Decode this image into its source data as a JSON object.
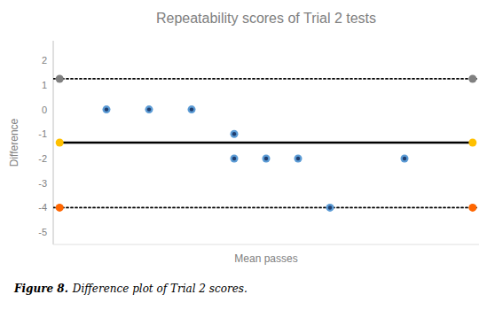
{
  "chart_data": {
    "type": "scatter",
    "title": "Repeatability scores of Trial 2 tests",
    "x_label": "Mean passes",
    "y_label": "Difference",
    "caption_label": "Figure 8.",
    "caption": "Difference plot of Trial 2 scores.",
    "xlim": [
      0.0,
      20.0
    ],
    "ylim": [
      -5.5,
      2.8
    ],
    "yticks": [
      -5,
      -4,
      -3,
      -2,
      -1,
      0,
      1,
      2
    ],
    "tick_labels": "y",
    "series": [
      {
        "type": "line",
        "line_style": "dotted",
        "color": "#000000",
        "x": [
          0.0,
          20.0
        ],
        "values": [
          1.25,
          1.25
        ]
      },
      {
        "type": "line",
        "line_style": "dotted",
        "color": "#000000",
        "x": [
          0.0,
          20.0
        ],
        "values": [
          -4.0,
          -4.0
        ]
      },
      {
        "type": "line",
        "line_style": "solid",
        "color": "#000000",
        "x": [
          0.3,
          19.7
        ],
        "values": [
          -1.35,
          -1.35
        ]
      },
      {
        "type": "scatter",
        "marker": "circle",
        "color": "#808080",
        "x": [
          0.3,
          19.7
        ],
        "values": [
          1.25,
          1.25
        ]
      },
      {
        "type": "scatter",
        "marker": "circle",
        "color": "#ffc000",
        "x": [
          0.3,
          19.7
        ],
        "values": [
          -1.35,
          -1.35
        ]
      },
      {
        "type": "scatter",
        "marker": "circle",
        "color": "#ff6600",
        "x": [
          0.3,
          19.7
        ],
        "values": [
          -4.0,
          -4.0
        ]
      },
      {
        "type": "scatter",
        "marker": "bullseye",
        "color": "#5b9bd5",
        "x": [
          2.5,
          4.5,
          6.5,
          8.5,
          8.5,
          10.0,
          11.5,
          13.0,
          16.5
        ],
        "values": [
          0,
          0,
          0,
          -1.0,
          -2.0,
          -2.0,
          -2.0,
          -4.0,
          -2.0
        ]
      }
    ]
  }
}
